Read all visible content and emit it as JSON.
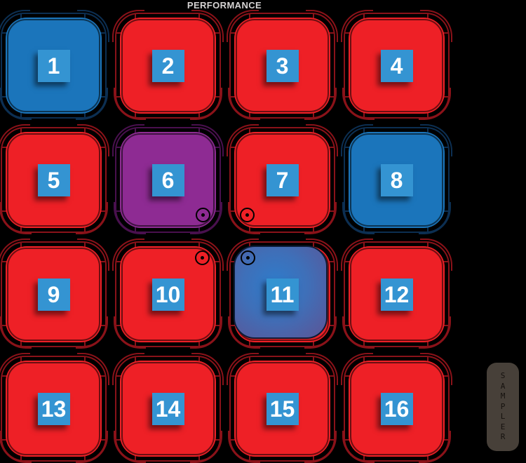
{
  "title": "PERFORMANCE",
  "side_label": {
    "text": "SAMPLER"
  },
  "colors": {
    "bg": "#000000",
    "pad-red": "#ee2026",
    "pad-blue": "#1b75bb",
    "pad-purple": "#8e2b93",
    "ring-red": "#8a1219",
    "ring-blue": "#0c2f52",
    "ring-purple": "#49104e",
    "badge-blue": "#3494d2",
    "number-text": "#ffffff",
    "title-text": "#d6d3d3",
    "glow-center": "#2e7ccb",
    "glow-edge": "#565a9d",
    "sampler-bg": "#474039",
    "sampler-text": "#15110e"
  },
  "pads": [
    {
      "number": "1",
      "color": "blue"
    },
    {
      "number": "2",
      "color": "red"
    },
    {
      "number": "3",
      "color": "red"
    },
    {
      "number": "4",
      "color": "red"
    },
    {
      "number": "5",
      "color": "red"
    },
    {
      "number": "6",
      "color": "purple",
      "indicator": "bottom-right"
    },
    {
      "number": "7",
      "color": "red",
      "indicator": "bottom-left"
    },
    {
      "number": "8",
      "color": "blue"
    },
    {
      "number": "9",
      "color": "red"
    },
    {
      "number": "10",
      "color": "red",
      "indicator": "top-right"
    },
    {
      "number": "11",
      "color": "red",
      "indicator": "top-left",
      "active": true
    },
    {
      "number": "12",
      "color": "red"
    },
    {
      "number": "13",
      "color": "red"
    },
    {
      "number": "14",
      "color": "red"
    },
    {
      "number": "15",
      "color": "red"
    },
    {
      "number": "16",
      "color": "red"
    }
  ]
}
